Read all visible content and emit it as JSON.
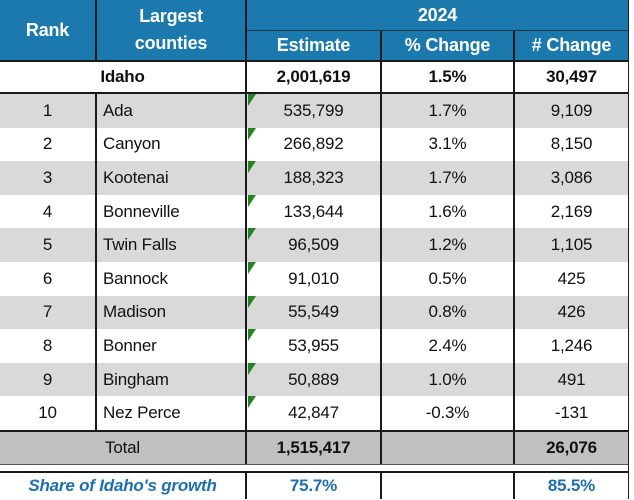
{
  "table": {
    "header": {
      "rank": "Rank",
      "counties_line1": "Largest",
      "counties_line2": "counties",
      "year": "2024",
      "estimate": "Estimate",
      "pct_change": "% Change",
      "num_change": "# Change"
    },
    "state_row": {
      "name": "Idaho",
      "estimate": "2,001,619",
      "pct_change": "1.5%",
      "num_change": "30,497"
    },
    "county_rows": [
      {
        "rank": "1",
        "name": "Ada",
        "estimate": "535,799",
        "pct_change": "1.7%",
        "num_change": "9,109"
      },
      {
        "rank": "2",
        "name": "Canyon",
        "estimate": "266,892",
        "pct_change": "3.1%",
        "num_change": "8,150"
      },
      {
        "rank": "3",
        "name": "Kootenai",
        "estimate": "188,323",
        "pct_change": "1.7%",
        "num_change": "3,086"
      },
      {
        "rank": "4",
        "name": "Bonneville",
        "estimate": "133,644",
        "pct_change": "1.6%",
        "num_change": "2,169"
      },
      {
        "rank": "5",
        "name": "Twin Falls",
        "estimate": "96,509",
        "pct_change": "1.2%",
        "num_change": "1,105"
      },
      {
        "rank": "6",
        "name": "Bannock",
        "estimate": "91,010",
        "pct_change": "0.5%",
        "num_change": "425"
      },
      {
        "rank": "7",
        "name": "Madison",
        "estimate": "55,549",
        "pct_change": "0.8%",
        "num_change": "426"
      },
      {
        "rank": "8",
        "name": "Bonner",
        "estimate": "53,955",
        "pct_change": "2.4%",
        "num_change": "1,246"
      },
      {
        "rank": "9",
        "name": "Bingham",
        "estimate": "50,889",
        "pct_change": "1.0%",
        "num_change": "491"
      },
      {
        "rank": "10",
        "name": "Nez Perce",
        "estimate": "42,847",
        "pct_change": "-0.3%",
        "num_change": "-131"
      }
    ],
    "total_row": {
      "label": "Total",
      "estimate": "1,515,417",
      "pct_change": "",
      "num_change": "26,076"
    },
    "share_row": {
      "label": "Share of Idaho's growth",
      "estimate": "75.7%",
      "pct_change": "",
      "num_change": "85.5%"
    }
  },
  "icons": {
    "cell_note_indicator": "green-corner-triangle"
  },
  "colors": {
    "header_blue": "#1B79AE",
    "stripe_gray": "#D9D9D9",
    "total_gray": "#C0C0C0",
    "share_text_blue": "#1D6FAD",
    "note_triangle_green": "#228522",
    "border_black": "#1A1A1A"
  },
  "chart_data": {
    "type": "table",
    "columns": [
      "Rank",
      "Largest counties",
      "2024 Estimate",
      "2024 % Change",
      "2024 # Change"
    ],
    "rows": [
      [
        null,
        "Idaho",
        2001619,
        1.5,
        30497
      ],
      [
        1,
        "Ada",
        535799,
        1.7,
        9109
      ],
      [
        2,
        "Canyon",
        266892,
        3.1,
        8150
      ],
      [
        3,
        "Kootenai",
        188323,
        1.7,
        3086
      ],
      [
        4,
        "Bonneville",
        133644,
        1.6,
        2169
      ],
      [
        5,
        "Twin Falls",
        96509,
        1.2,
        1105
      ],
      [
        6,
        "Bannock",
        91010,
        0.5,
        425
      ],
      [
        7,
        "Madison",
        55549,
        0.8,
        426
      ],
      [
        8,
        "Bonner",
        53955,
        2.4,
        1246
      ],
      [
        9,
        "Bingham",
        50889,
        1.0,
        491
      ],
      [
        10,
        "Nez Perce",
        42847,
        -0.3,
        -131
      ],
      [
        null,
        "Total",
        1515417,
        null,
        26076
      ],
      [
        null,
        "Share of Idaho's growth",
        75.7,
        null,
        85.5
      ]
    ],
    "notes": "values rows 1-10 carry a green cell-note corner indicator on the Estimate cell"
  }
}
